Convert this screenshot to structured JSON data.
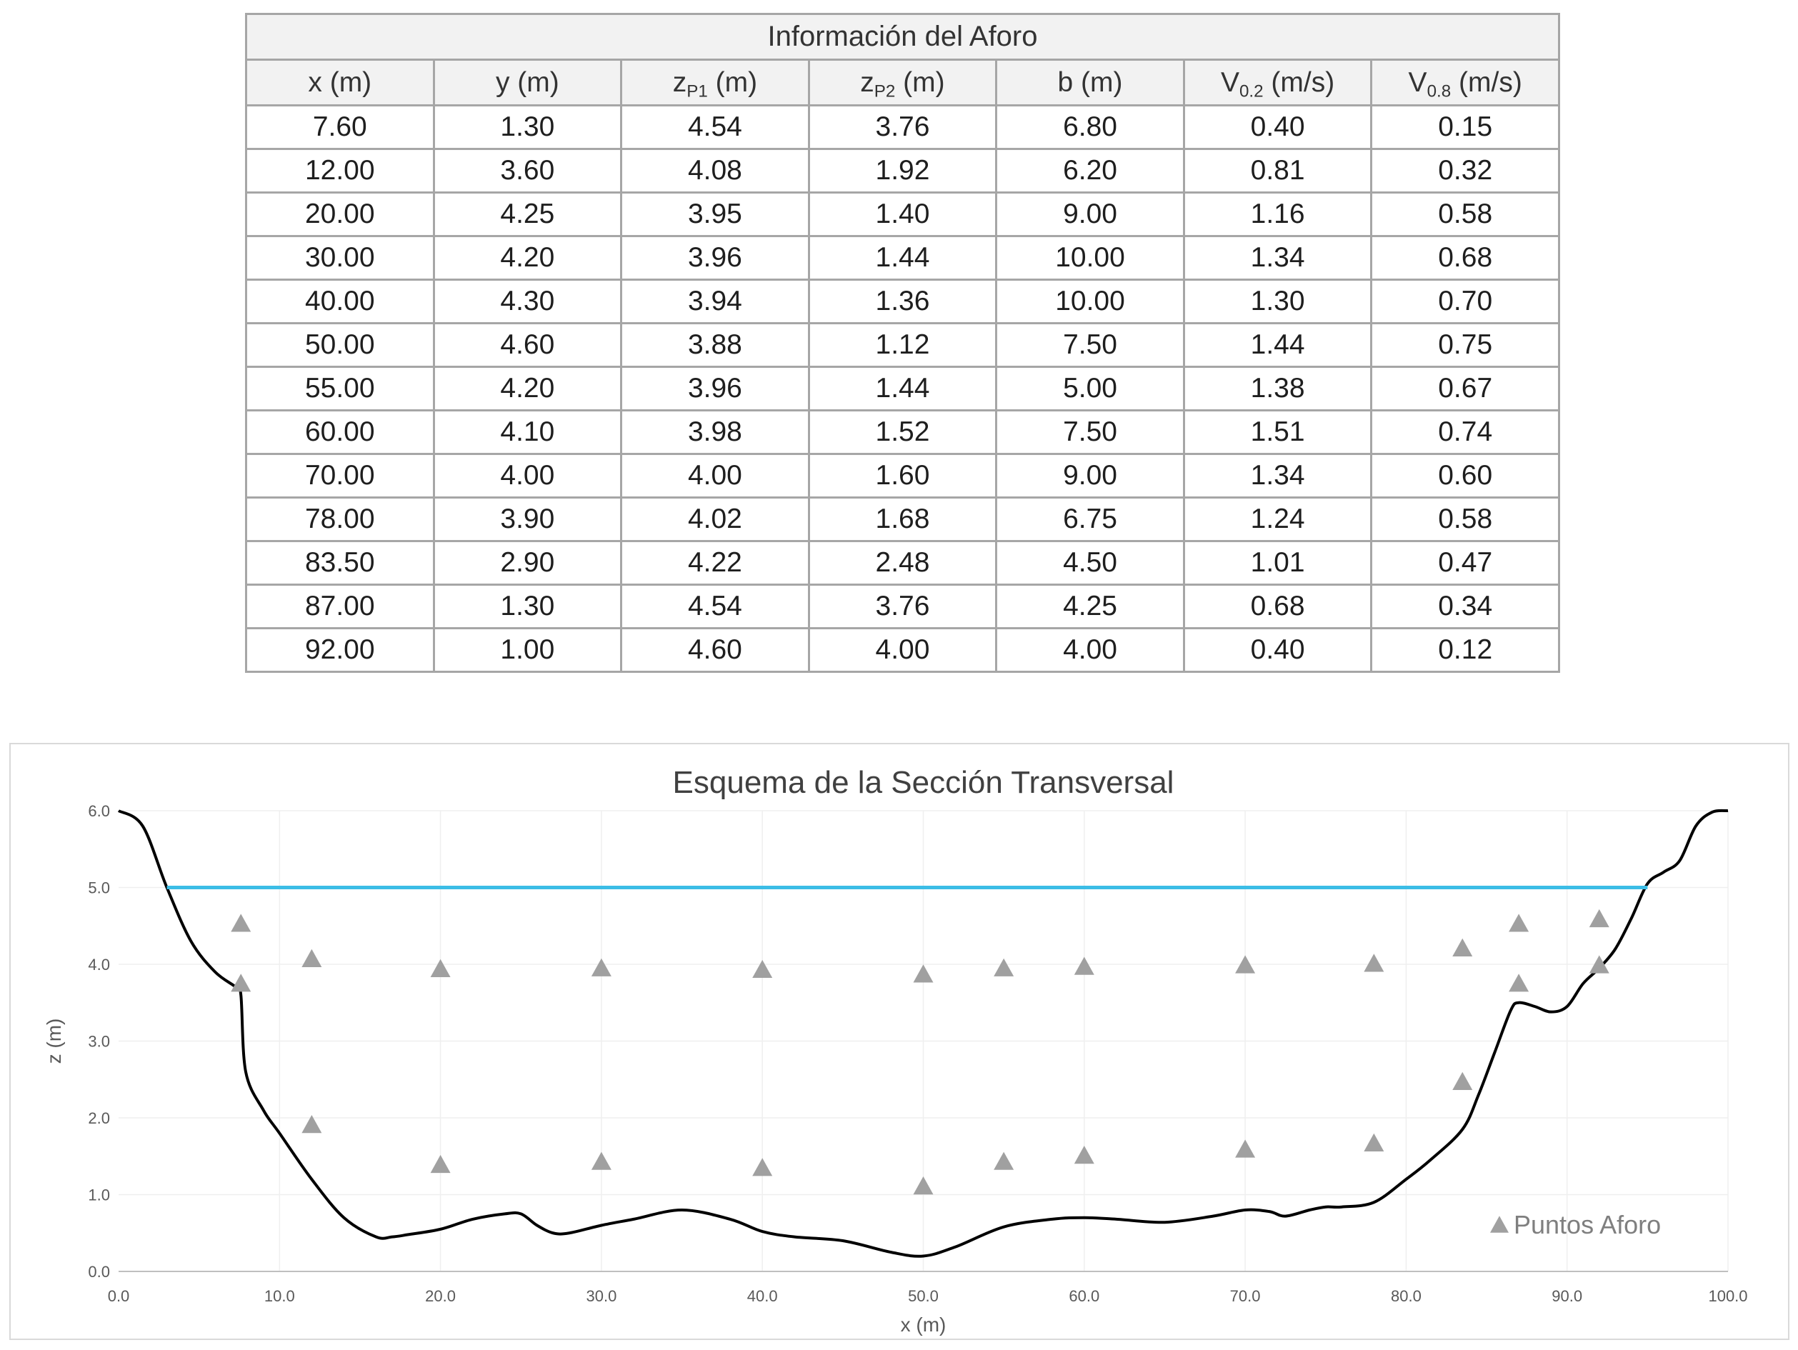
{
  "table": {
    "title": "Información del Aforo",
    "headers": [
      {
        "main": "x (m)",
        "sub": "",
        "tail": ""
      },
      {
        "main": "y (m)",
        "sub": "",
        "tail": ""
      },
      {
        "main": "z",
        "sub": "P1",
        "tail": " (m)"
      },
      {
        "main": "z",
        "sub": "P2",
        "tail": " (m)"
      },
      {
        "main": "b (m)",
        "sub": "",
        "tail": ""
      },
      {
        "main": "V",
        "sub": "0.2",
        "tail": " (m/s)"
      },
      {
        "main": "V",
        "sub": "0.8",
        "tail": " (m/s)"
      }
    ],
    "rows": [
      [
        "7.60",
        "1.30",
        "4.54",
        "3.76",
        "6.80",
        "0.40",
        "0.15"
      ],
      [
        "12.00",
        "3.60",
        "4.08",
        "1.92",
        "6.20",
        "0.81",
        "0.32"
      ],
      [
        "20.00",
        "4.25",
        "3.95",
        "1.40",
        "9.00",
        "1.16",
        "0.58"
      ],
      [
        "30.00",
        "4.20",
        "3.96",
        "1.44",
        "10.00",
        "1.34",
        "0.68"
      ],
      [
        "40.00",
        "4.30",
        "3.94",
        "1.36",
        "10.00",
        "1.30",
        "0.70"
      ],
      [
        "50.00",
        "4.60",
        "3.88",
        "1.12",
        "7.50",
        "1.44",
        "0.75"
      ],
      [
        "55.00",
        "4.20",
        "3.96",
        "1.44",
        "5.00",
        "1.38",
        "0.67"
      ],
      [
        "60.00",
        "4.10",
        "3.98",
        "1.52",
        "7.50",
        "1.51",
        "0.74"
      ],
      [
        "70.00",
        "4.00",
        "4.00",
        "1.60",
        "9.00",
        "1.34",
        "0.60"
      ],
      [
        "78.00",
        "3.90",
        "4.02",
        "1.68",
        "6.75",
        "1.24",
        "0.58"
      ],
      [
        "83.50",
        "2.90",
        "4.22",
        "2.48",
        "4.50",
        "1.01",
        "0.47"
      ],
      [
        "87.00",
        "1.30",
        "4.54",
        "3.76",
        "4.25",
        "0.68",
        "0.34"
      ],
      [
        "92.00",
        "1.00",
        "4.60",
        "4.00",
        "4.00",
        "0.40",
        "0.12"
      ]
    ]
  },
  "chart_data": {
    "type": "scatter",
    "title": "Esquema de la Sección Transversal",
    "xlabel": "x (m)",
    "ylabel": "z (m)",
    "xlim": [
      0,
      100
    ],
    "ylim": [
      0,
      6
    ],
    "xticks": [
      "0.0",
      "10.0",
      "20.0",
      "30.0",
      "40.0",
      "50.0",
      "60.0",
      "70.0",
      "80.0",
      "90.0",
      "100.0"
    ],
    "yticks": [
      "0.0",
      "1.0",
      "2.0",
      "3.0",
      "4.0",
      "5.0",
      "6.0"
    ],
    "grid": true,
    "legend_position": "bottom-right",
    "colors": {
      "bed": "#000000",
      "water": "#3cbde6",
      "points": "#a0a0a0"
    },
    "series": [
      {
        "name": "",
        "type": "line",
        "x": [
          0,
          1.5,
          3,
          4.5,
          6,
          7.3,
          7.6,
          7.9,
          9,
          10,
          12,
          14,
          16,
          17,
          18,
          20,
          22,
          24,
          25,
          26,
          27,
          28,
          30,
          32,
          35,
          38,
          40,
          42,
          45,
          48,
          50,
          52,
          55,
          58,
          60,
          62,
          65,
          68,
          70,
          71.5,
          72.5,
          74,
          75,
          76,
          78,
          80,
          81.5,
          83.5,
          84.5,
          85.5,
          86.5,
          87,
          88,
          89,
          90,
          91,
          92,
          93,
          94,
          95,
          96,
          97,
          98,
          99,
          100
        ],
        "y": [
          6.0,
          5.8,
          5.0,
          4.3,
          3.9,
          3.7,
          3.6,
          2.6,
          2.1,
          1.8,
          1.2,
          0.7,
          0.45,
          0.45,
          0.48,
          0.55,
          0.68,
          0.75,
          0.75,
          0.6,
          0.5,
          0.5,
          0.6,
          0.68,
          0.8,
          0.68,
          0.52,
          0.45,
          0.4,
          0.25,
          0.2,
          0.32,
          0.58,
          0.68,
          0.7,
          0.68,
          0.64,
          0.72,
          0.8,
          0.78,
          0.72,
          0.8,
          0.84,
          0.84,
          0.9,
          1.2,
          1.45,
          1.85,
          2.3,
          2.85,
          3.4,
          3.5,
          3.45,
          3.38,
          3.45,
          3.75,
          3.95,
          4.2,
          4.6,
          5.05,
          5.2,
          5.35,
          5.8,
          5.98,
          6.0
        ]
      },
      {
        "name": "",
        "type": "line",
        "x": [
          3,
          95
        ],
        "y": [
          5.0,
          5.0
        ]
      },
      {
        "name": "Puntos Aforo",
        "type": "scatter",
        "marker": "triangle",
        "x": [
          7.6,
          7.6,
          12,
          12,
          20,
          20,
          30,
          30,
          40,
          40,
          50,
          50,
          55,
          55,
          60,
          60,
          70,
          70,
          78,
          78,
          83.5,
          83.5,
          87,
          87,
          92,
          92
        ],
        "y": [
          4.54,
          3.76,
          4.08,
          1.92,
          3.95,
          1.4,
          3.96,
          1.44,
          3.94,
          1.36,
          3.88,
          1.12,
          3.96,
          1.44,
          3.98,
          1.52,
          4.0,
          1.6,
          4.02,
          1.68,
          4.22,
          2.48,
          4.54,
          3.76,
          4.6,
          4.0
        ]
      }
    ]
  }
}
